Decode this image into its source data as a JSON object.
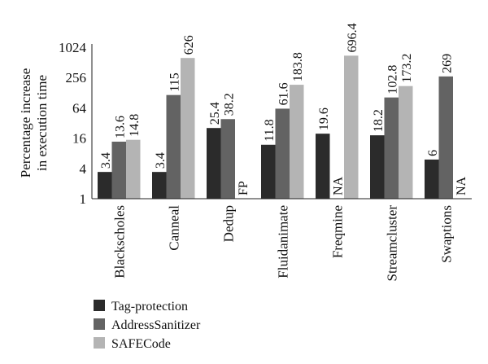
{
  "chart_data": {
    "type": "bar",
    "title": "",
    "xlabel": "",
    "ylabel": "Percentage increase in execution time",
    "ylabel_lines": [
      "Percentage increase",
      "in execution time"
    ],
    "yscale": "log2",
    "ylim": [
      1,
      1024
    ],
    "yticks": [
      1,
      4,
      16,
      64,
      256,
      1024
    ],
    "ytick_labels": [
      "1",
      "4",
      "16",
      "64",
      "256",
      "1024"
    ],
    "grid": false,
    "legend_position": "bottom-left",
    "categories": [
      "Blackscholes",
      "Canneal",
      "Dedup",
      "Fluidanimate",
      "Freqmine",
      "Streamcluster",
      "Swaptions"
    ],
    "series": [
      {
        "name": "Tag-protection",
        "color": "#2b2b2b",
        "values": [
          3.4,
          3.4,
          25.4,
          11.8,
          19.6,
          18.2,
          6
        ],
        "labels": [
          "3.4",
          "3.4",
          "25.4",
          "11.8",
          "19.6",
          "18.2",
          "6"
        ]
      },
      {
        "name": "AddressSanitizer",
        "color": "#636363",
        "values": [
          13.6,
          115,
          38.2,
          61.6,
          null,
          102.8,
          269
        ],
        "labels": [
          "13.6",
          "115",
          "38.2",
          "61.6",
          "NA",
          "102.8",
          "269"
        ]
      },
      {
        "name": "SAFECode",
        "color": "#b4b4b4",
        "values": [
          14.8,
          626,
          null,
          183.8,
          696.4,
          173.2,
          null
        ],
        "labels": [
          "14.8",
          "626",
          "FP",
          "183.8",
          "696.4",
          "173.2",
          "NA"
        ]
      }
    ]
  }
}
